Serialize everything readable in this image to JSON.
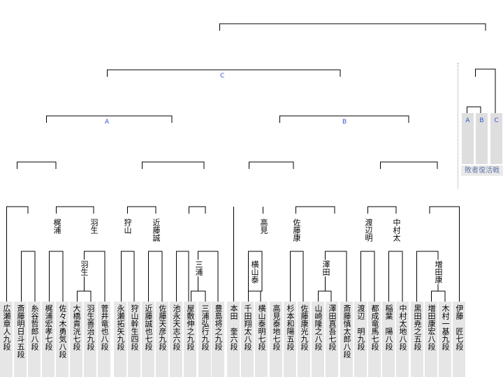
{
  "players": [
    "広瀬章人九段",
    "斎藤明日斗五段",
    "糸谷哲郎八段",
    "梶浦宏孝七段",
    "佐々木勇気八段",
    "大橋貴洸七段",
    "羽生善治九段",
    "菅井竜也八段",
    "永瀬拓矢九段",
    "狩山幹生四段",
    "近藤誠也七段",
    "佐藤天彦九段",
    "池永天志六段",
    "屋敷伸之九段",
    "三浦弘行九段",
    "豊島将之九段",
    "本田　奎六段",
    "千田翔太八段",
    "横山泰明七段",
    "高見泰地七段",
    "杉本和陽五段",
    "佐藤康光九段",
    "山崎隆之八段",
    "澤田真吾七段",
    "斎藤慎太郎八段",
    "渡辺　明九段",
    "都成竜馬七段",
    "稲葉　陽八段",
    "中村太地八段",
    "黒田尭之五段",
    "増田康宏八段",
    "木村一基九段",
    "伊藤　匠七段"
  ],
  "winners": {
    "r2_2": "羽生",
    "r2_6": "三浦",
    "r2_9": "横山泰",
    "r2_11": "澤田",
    "r2_15": "増田康",
    "r3_2": "梶浦",
    "r3_3": "羽生",
    "r3_4": "狩山",
    "r3_5": "近藤誠",
    "r3_9": "高見",
    "r3_10": "佐藤康",
    "r3_12": "渡辺明",
    "r3_13": "中村太"
  },
  "groups": {
    "a": "A",
    "b": "B",
    "c": "C"
  },
  "haisha": {
    "title": "敗者復活戦",
    "cols": [
      "A",
      "B",
      "C"
    ]
  }
}
